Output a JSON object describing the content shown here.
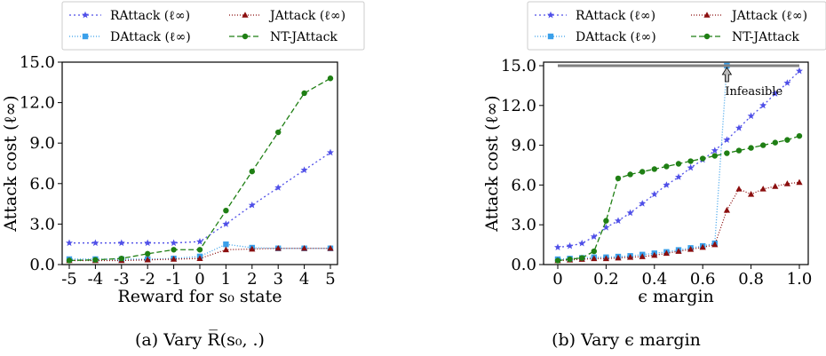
{
  "figure": {
    "caption_a": "(a) Vary R̅(s₀, .)",
    "caption_b": "(b) Vary ϵ margin"
  },
  "colors": {
    "RAttack": "#4f4fe8",
    "DAttack": "#3ba0ea",
    "JAttack": "#8b0e0e",
    "NT-JAttack": "#1f7f14"
  },
  "chart_data": [
    {
      "type": "line",
      "title": "",
      "xlabel": "Reward for s₀ state",
      "ylabel": "Attack cost (ℓ∞)",
      "x": [
        -5,
        -4,
        -3,
        -2,
        -1,
        0,
        1,
        2,
        3,
        4,
        5
      ],
      "x_tick_labels": [
        "-5",
        "-4",
        "-3",
        "-2",
        "-1",
        "0",
        "1",
        "2",
        "3",
        "4",
        "5"
      ],
      "y_ticks": [
        "0.0",
        "3.0",
        "6.0",
        "9.0",
        "12.0",
        "15.0"
      ],
      "ylim": [
        0,
        15
      ],
      "grid": false,
      "legend": "top",
      "series": [
        {
          "name": "RAttack (ℓ∞)",
          "key": "RAttack",
          "values": [
            1.6,
            1.6,
            1.6,
            1.6,
            1.6,
            1.7,
            3.0,
            4.4,
            5.7,
            7.0,
            8.3
          ]
        },
        {
          "name": "DAttack (ℓ∞)",
          "key": "DAttack",
          "values": [
            0.4,
            0.4,
            0.4,
            0.4,
            0.45,
            0.6,
            1.5,
            1.25,
            1.2,
            1.2,
            1.2
          ]
        },
        {
          "name": "JAttack (ℓ∞)",
          "key": "JAttack",
          "values": [
            0.3,
            0.3,
            0.3,
            0.35,
            0.4,
            0.45,
            1.1,
            1.15,
            1.2,
            1.2,
            1.2
          ]
        },
        {
          "name": "NT-JAttack",
          "key": "NT-JAttack",
          "values": [
            0.3,
            0.35,
            0.45,
            0.8,
            1.1,
            1.1,
            4.0,
            6.9,
            9.8,
            12.7,
            13.8
          ]
        }
      ]
    },
    {
      "type": "line",
      "title": "",
      "xlabel": "ϵ margin",
      "ylabel": "Attack cost (ℓ∞)",
      "x_ticks": [
        0,
        0.2,
        0.4,
        0.6,
        0.8,
        1.0
      ],
      "x_tick_labels": [
        "0",
        "0.2",
        "0.4",
        "0.6",
        "0.8",
        "1.0"
      ],
      "y_ticks": [
        "0.0",
        "3.0",
        "6.0",
        "9.0",
        "12.0",
        "15.0"
      ],
      "ylim": [
        0,
        15
      ],
      "xlim": [
        0,
        1.0
      ],
      "grid": false,
      "legend": "top",
      "annotation": {
        "text": "Infeasible",
        "x": 0.7,
        "y": 15
      },
      "series": [
        {
          "name": "RAttack (ℓ∞)",
          "key": "RAttack",
          "x": [
            0,
            0.05,
            0.1,
            0.15,
            0.2,
            0.25,
            0.3,
            0.35,
            0.4,
            0.45,
            0.5,
            0.55,
            0.6,
            0.65,
            0.7,
            0.75,
            0.8,
            0.85,
            0.9,
            0.95,
            1.0
          ],
          "values": [
            1.3,
            1.4,
            1.6,
            2.1,
            2.8,
            3.3,
            3.9,
            4.6,
            5.3,
            6.0,
            6.6,
            7.3,
            7.9,
            8.6,
            9.4,
            10.3,
            11.2,
            12.0,
            12.9,
            13.7,
            14.6
          ]
        },
        {
          "name": "DAttack (ℓ∞)",
          "key": "DAttack",
          "x": [
            0,
            0.05,
            0.1,
            0.15,
            0.2,
            0.25,
            0.3,
            0.35,
            0.4,
            0.45,
            0.5,
            0.55,
            0.6,
            0.65,
            0.7
          ],
          "values": [
            0.4,
            0.45,
            0.5,
            0.55,
            0.55,
            0.6,
            0.65,
            0.75,
            0.85,
            0.95,
            1.1,
            1.25,
            1.4,
            1.6,
            15.0
          ]
        },
        {
          "name": "JAttack (ℓ∞)",
          "key": "JAttack",
          "x": [
            0,
            0.05,
            0.1,
            0.15,
            0.2,
            0.25,
            0.3,
            0.35,
            0.4,
            0.45,
            0.5,
            0.55,
            0.6,
            0.65,
            0.7,
            0.75,
            0.8,
            0.85,
            0.9,
            0.95,
            1.0
          ],
          "values": [
            0.3,
            0.35,
            0.4,
            0.45,
            0.45,
            0.5,
            0.55,
            0.6,
            0.7,
            0.85,
            1.0,
            1.15,
            1.3,
            1.5,
            4.1,
            5.7,
            5.3,
            5.7,
            5.9,
            6.1,
            6.2
          ]
        },
        {
          "name": "NT-JAttack",
          "key": "NT-JAttack",
          "x": [
            0,
            0.05,
            0.1,
            0.15,
            0.2,
            0.25,
            0.3,
            0.35,
            0.4,
            0.45,
            0.5,
            0.55,
            0.6,
            0.65,
            0.7,
            0.75,
            0.8,
            0.85,
            0.9,
            0.95,
            1.0
          ],
          "values": [
            0.3,
            0.4,
            0.5,
            1.0,
            3.3,
            6.5,
            6.8,
            7.0,
            7.2,
            7.4,
            7.6,
            7.8,
            8.0,
            8.2,
            8.4,
            8.6,
            8.8,
            9.0,
            9.2,
            9.4,
            9.7
          ]
        }
      ]
    }
  ]
}
